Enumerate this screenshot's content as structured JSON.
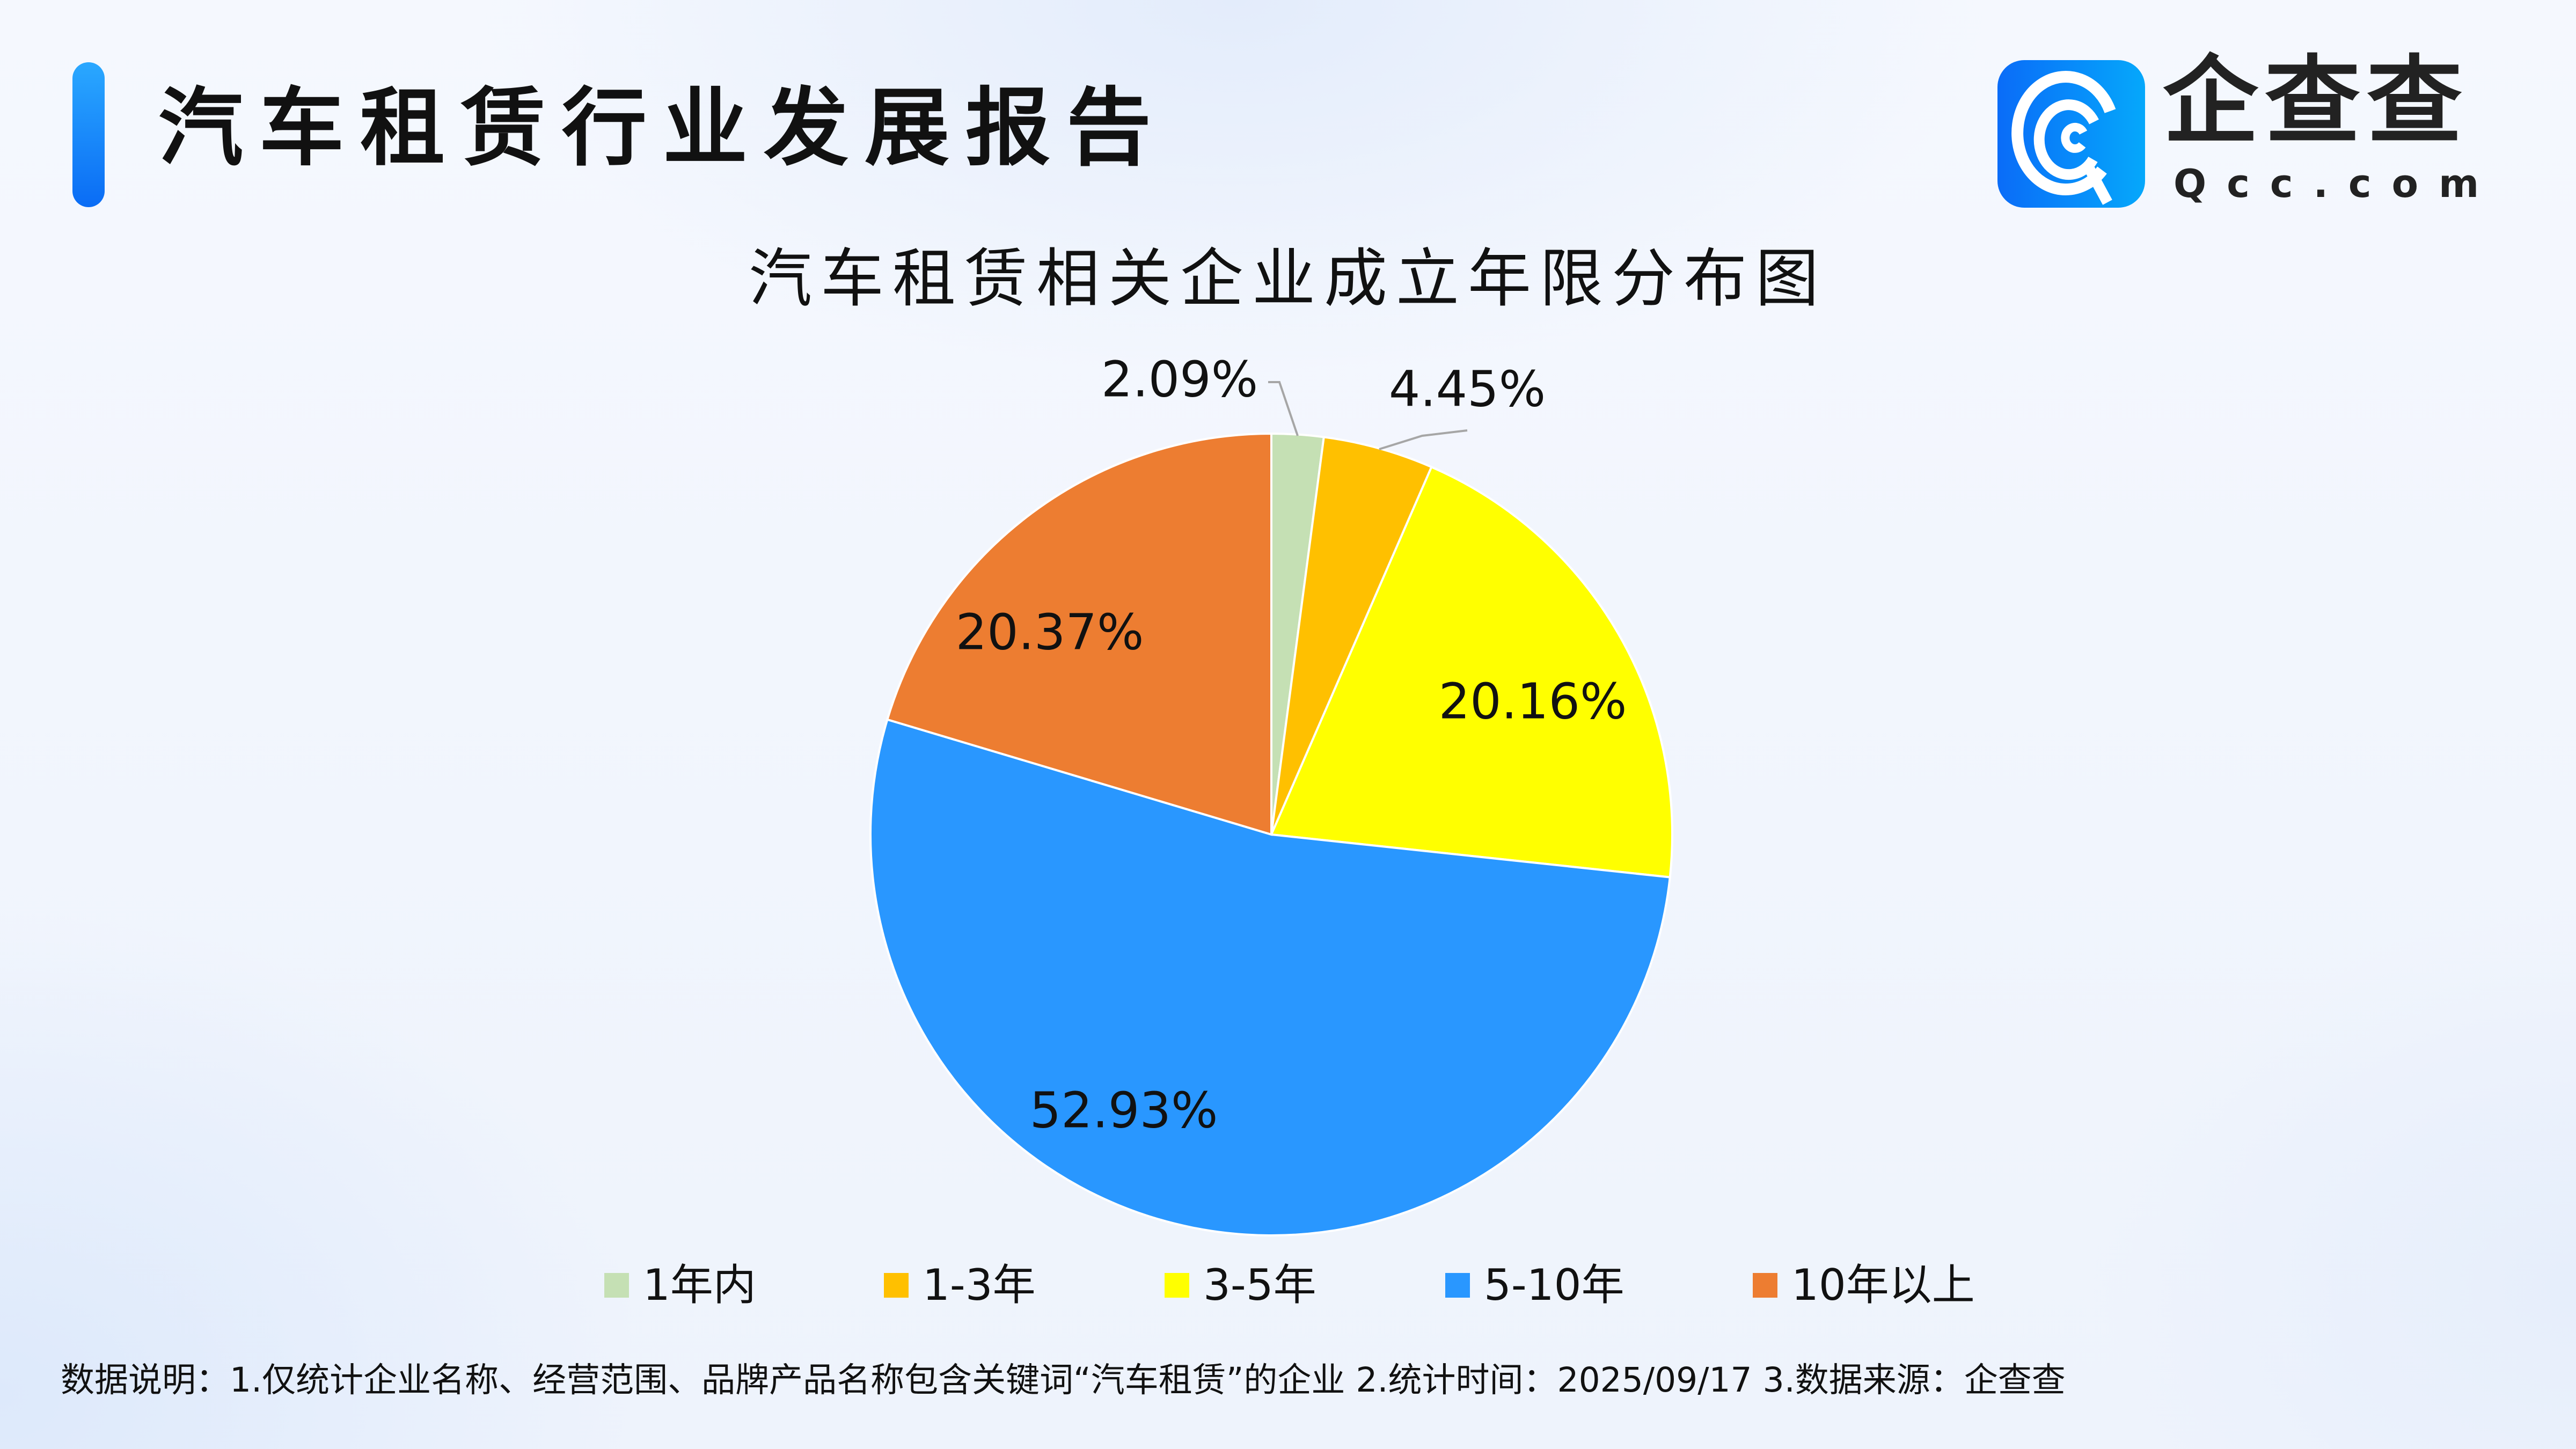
{
  "header": {
    "title": "汽车租赁行业发展报告"
  },
  "logo": {
    "name_cn": "企查查",
    "name_en": "Qcc.com",
    "brand_color": "#0a7cf8"
  },
  "chart_data": {
    "type": "pie",
    "title": "汽车租赁相关企业成立年限分布图",
    "start_angle": "12 o'clock",
    "direction": "clockwise",
    "legend_position": "bottom",
    "slices": [
      {
        "label": "1年内",
        "value": 2.09,
        "display": "2.09%",
        "color": "#c5e0b4"
      },
      {
        "label": "1-3年",
        "value": 4.45,
        "display": "4.45%",
        "color": "#ffc000"
      },
      {
        "label": "3-5年",
        "value": 20.16,
        "display": "20.16%",
        "color": "#ffff00"
      },
      {
        "label": "5-10年",
        "value": 52.93,
        "display": "52.93%",
        "color": "#2997ff"
      },
      {
        "label": "10年以上",
        "value": 20.37,
        "display": "20.37%",
        "color": "#ed7d31"
      }
    ]
  },
  "footnote": "数据说明：1.仅统计企业名称、经营范围、品牌产品名称包含关键词“汽车租赁”的企业   2.统计时间：2025/09/17    3.数据来源：企查查"
}
